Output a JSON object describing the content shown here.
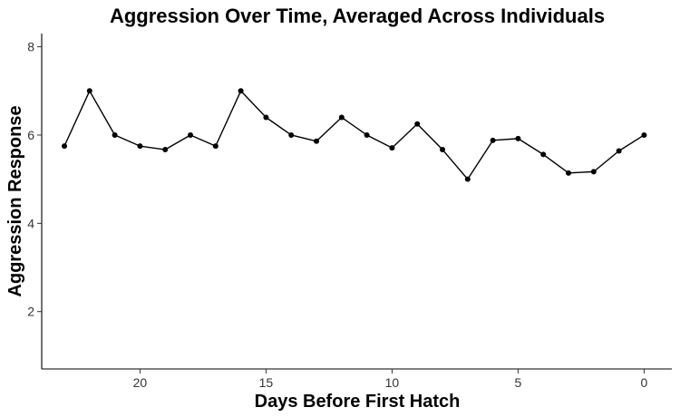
{
  "chart_data": {
    "type": "line",
    "title": "Aggression Over Time, Averaged Across Individuals",
    "xlabel": "Days Before First Hatch",
    "ylabel": "Aggression Response",
    "x_reversed": true,
    "xlim": [
      23.9,
      -1.1
    ],
    "ylim": [
      0.7,
      8.3
    ],
    "x_ticks": [
      20,
      15,
      10,
      5,
      0
    ],
    "y_ticks": [
      2,
      4,
      6,
      8
    ],
    "grid": false,
    "legend": "none",
    "line_color": "#000000",
    "point_color": "#000000",
    "series": [
      {
        "x": [
          23,
          22,
          21,
          20,
          19,
          18,
          17,
          16,
          15,
          14,
          13,
          12,
          11,
          10,
          9,
          8,
          7,
          6,
          5,
          4,
          3,
          2,
          1,
          0
        ],
        "y": [
          5.75,
          7.0,
          6.0,
          5.75,
          5.67,
          6.0,
          5.75,
          7.0,
          6.4,
          6.0,
          5.86,
          6.4,
          6.0,
          5.71,
          6.25,
          5.67,
          5.0,
          5.88,
          5.92,
          5.56,
          5.14,
          5.17,
          5.64,
          6.0
        ]
      }
    ]
  }
}
